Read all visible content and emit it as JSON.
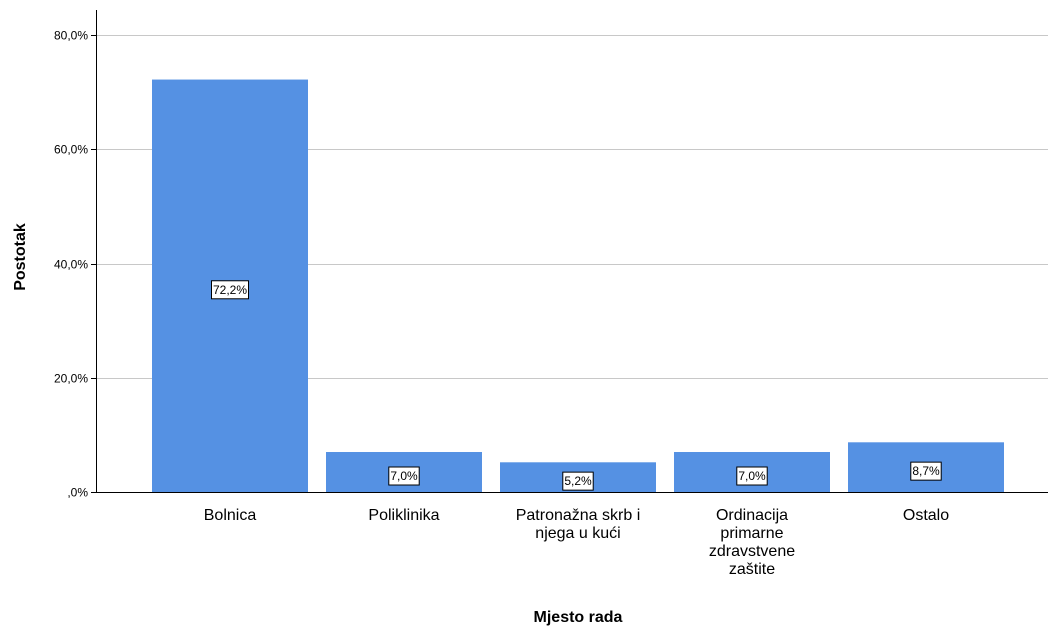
{
  "chart_data": {
    "type": "bar",
    "categories": [
      [
        "Bolnica"
      ],
      [
        "Poliklinika"
      ],
      [
        "Patronažna skrb i",
        "njega u kući"
      ],
      [
        "Ordinacija",
        "primarne",
        "zdravstvene",
        "zaštite"
      ],
      [
        "Ostalo"
      ]
    ],
    "values": [
      72.2,
      7.0,
      5.2,
      7.0,
      8.7
    ],
    "data_labels": [
      "72,2%",
      "7,0%",
      "5,2%",
      "7,0%",
      "8,7%"
    ],
    "xlabel": "Mjesto rada",
    "ylabel": "Postotak",
    "ylim": [
      0,
      80
    ],
    "yticks": [
      0,
      20,
      40,
      60,
      80
    ],
    "ytick_labels": [
      ",0%",
      "20,0%",
      "40,0%",
      "60,0%",
      "80,0%"
    ],
    "grid": true,
    "bar_color": "#5591e3",
    "grid_color": "#c8c8c8"
  }
}
